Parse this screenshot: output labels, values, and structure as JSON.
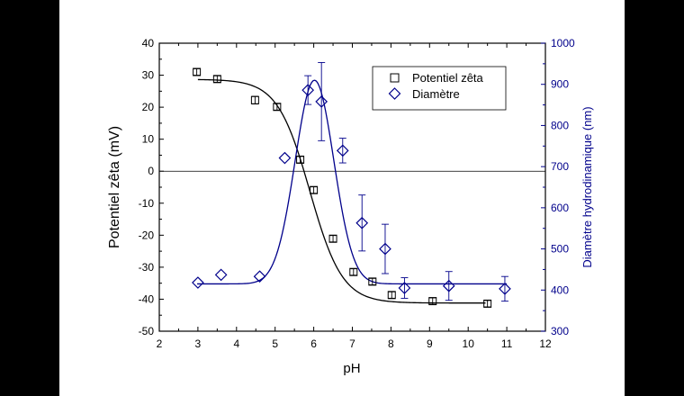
{
  "chart_data": {
    "type": "scatter",
    "xlabel": "pH",
    "ylabel_left": "Potentiel zêta (mV)",
    "ylabel_right": "Diamètre hydrodinamique (nm)",
    "xlim": [
      2,
      12
    ],
    "ylim_left": [
      -50,
      40
    ],
    "ylim_right": [
      300,
      1000
    ],
    "x_ticks": [
      2,
      3,
      4,
      5,
      6,
      7,
      8,
      9,
      10,
      11,
      12
    ],
    "y_left_ticks": [
      -50,
      -40,
      -30,
      -20,
      -10,
      0,
      10,
      20,
      30,
      40
    ],
    "y_right_ticks": [
      300,
      400,
      500,
      600,
      700,
      800,
      900,
      1000
    ],
    "zero_line": 0,
    "legend_position": "top-right",
    "series": [
      {
        "name": "Potentiel zêta",
        "axis": "left",
        "marker": "square",
        "color": "#000000",
        "x": [
          2.97,
          3.5,
          4.48,
          5.05,
          5.65,
          6.0,
          6.5,
          7.03,
          7.52,
          8.02,
          9.08,
          10.5
        ],
        "y": [
          31,
          28.8,
          22.2,
          20.1,
          3.6,
          -5.9,
          -21.1,
          -31.5,
          -34.5,
          -38.7,
          -40.6,
          -41.4
        ],
        "err": [
          1.0,
          1.0,
          1.2,
          1.0,
          1.0,
          1.0,
          1.0,
          1.0,
          1.0,
          1.0,
          1.0,
          1.0
        ],
        "fit": {
          "type": "sigmoid",
          "top": 28.7,
          "bottom": -41.2,
          "x0": 5.9,
          "k": 0.42
        }
      },
      {
        "name": "Diamètre",
        "axis": "right",
        "marker": "diamond",
        "color": "#00008b",
        "x": [
          3.0,
          3.6,
          4.6,
          5.25,
          5.85,
          6.2,
          6.75,
          7.25,
          7.85,
          8.35,
          9.5,
          10.95
        ],
        "y": [
          418,
          437,
          433,
          721,
          886,
          858,
          739,
          563,
          500,
          405,
          410,
          403
        ],
        "err": [
          0,
          0,
          0,
          0,
          35,
          95,
          30,
          68,
          60,
          25,
          35,
          30
        ],
        "fit": {
          "type": "gauss",
          "base": 415,
          "amp": 495,
          "center": 6.02,
          "sigma": 0.5
        }
      }
    ]
  }
}
